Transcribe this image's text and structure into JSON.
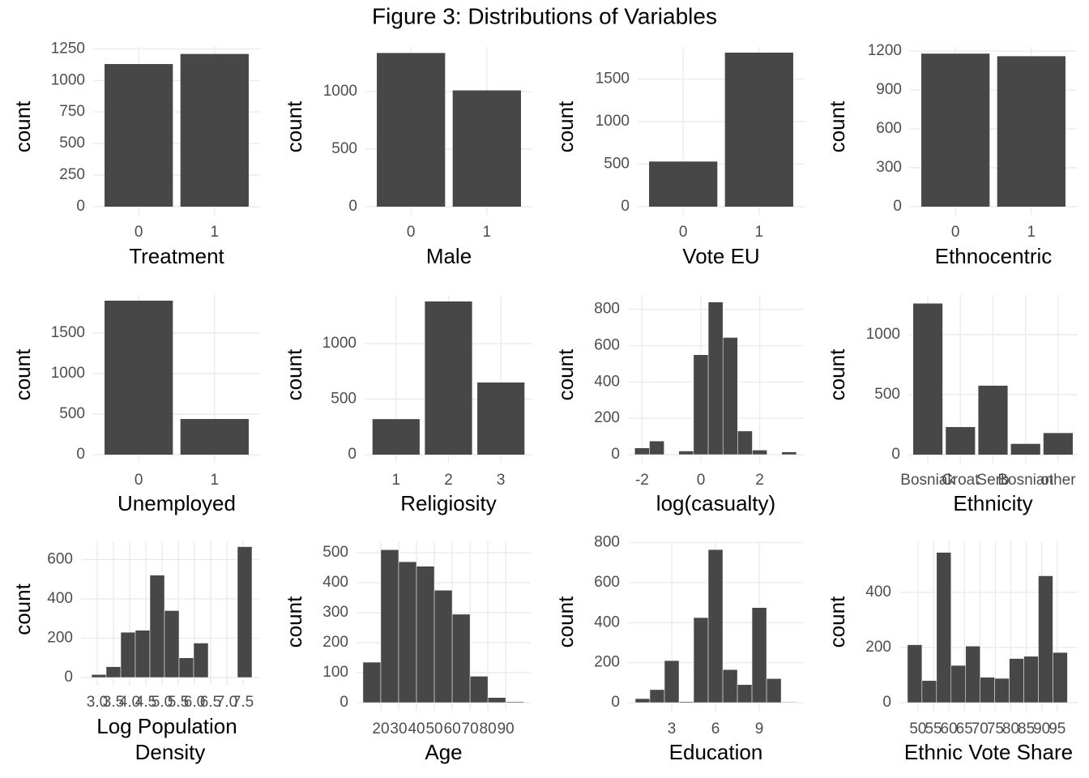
{
  "title": "Figure 3: Distributions of Variables",
  "chart_data": [
    {
      "type": "bar",
      "xlabel": "Treatment",
      "ylabel": "count",
      "categories": [
        "0",
        "1"
      ],
      "values": [
        1130,
        1210
      ],
      "color": "#474747",
      "ylim": [
        0,
        1265
      ],
      "yticks": [
        0,
        250,
        500,
        750,
        1000,
        1250
      ],
      "grid": true
    },
    {
      "type": "bar",
      "xlabel": "Male",
      "ylabel": "count",
      "categories": [
        "0",
        "1"
      ],
      "values": [
        1335,
        1010
      ],
      "color": "#474747",
      "ylim": [
        0,
        1387
      ],
      "yticks": [
        0,
        500,
        1000
      ],
      "grid": true
    },
    {
      "type": "bar",
      "xlabel": "Vote EU",
      "ylabel": "count",
      "categories": [
        "0",
        "1"
      ],
      "values": [
        530,
        1810
      ],
      "color": "#474747",
      "ylim": [
        0,
        1876
      ],
      "yticks": [
        0,
        500,
        1000,
        1500
      ],
      "grid": true
    },
    {
      "type": "bar",
      "xlabel": "Ethnocentric",
      "ylabel": "count",
      "categories": [
        "0",
        "1"
      ],
      "values": [
        1180,
        1160
      ],
      "color": "#474747",
      "ylim": [
        0,
        1231
      ],
      "yticks": [
        0,
        300,
        600,
        900,
        1200
      ],
      "grid": true
    },
    {
      "type": "bar",
      "xlabel": "Unemployed",
      "ylabel": "count",
      "categories": [
        "0",
        "1"
      ],
      "values": [
        1900,
        440
      ],
      "color": "#474747",
      "ylim": [
        0,
        1970
      ],
      "yticks": [
        0,
        500,
        1000,
        1500
      ],
      "grid": true
    },
    {
      "type": "bar",
      "xlabel": "Religiosity",
      "ylabel": "count",
      "categories": [
        "1",
        "2",
        "3"
      ],
      "values": [
        320,
        1380,
        650
      ],
      "color": "#474747",
      "ylim": [
        0,
        1438
      ],
      "yticks": [
        0,
        500,
        1000
      ],
      "grid": true
    },
    {
      "type": "histogram",
      "xlabel": "log(casualty)",
      "ylabel": "count",
      "bins": [
        -2.25,
        -1.75,
        -1.25,
        -0.75,
        -0.25,
        0.25,
        0.75,
        1.25,
        1.75,
        2.25,
        2.75,
        3.25
      ],
      "values": [
        37,
        75,
        0,
        20,
        550,
        840,
        645,
        130,
        25,
        0,
        15
      ],
      "color": "#474747",
      "xlim": [
        -2.48,
        3.5
      ],
      "xticks": [
        -2,
        0,
        2
      ],
      "ylim": [
        0,
        879
      ],
      "yticks": [
        0,
        200,
        400,
        600,
        800
      ],
      "grid": true
    },
    {
      "type": "bar",
      "xlabel": "Ethnicity",
      "ylabel": "count",
      "categories": [
        "Bosniak",
        "Croat",
        "Serb",
        "Bosnian",
        "other"
      ],
      "values": [
        1260,
        230,
        575,
        90,
        180
      ],
      "color": "#474747",
      "ylim": [
        0,
        1331
      ],
      "yticks": [
        0,
        500,
        1000
      ],
      "grid": true
    },
    {
      "type": "histogram",
      "xlabel": [
        "Log Population",
        "Density"
      ],
      "ylabel": "count",
      "bins": [
        2.825,
        3.275,
        3.725,
        4.175,
        4.625,
        5.075,
        5.525,
        5.975,
        6.425,
        6.875,
        7.325,
        7.775
      ],
      "values": [
        15,
        55,
        230,
        240,
        520,
        340,
        100,
        175,
        0,
        0,
        665
      ],
      "color": "#474747",
      "xlim": [
        2.5,
        8.0
      ],
      "xticks": [
        {
          "value": 3,
          "label": "3.0"
        },
        3.5,
        {
          "value": 4,
          "label": "4.0"
        },
        4.5,
        {
          "value": 5,
          "label": "5.0"
        },
        5.5,
        {
          "value": 6,
          "label": "6.0"
        },
        6.5,
        {
          "value": 7,
          "label": "7.0"
        },
        7.5
      ],
      "ylim": [
        0,
        692
      ],
      "yticks": [
        0,
        200,
        400,
        600
      ],
      "grid": true
    },
    {
      "type": "histogram",
      "xlabel": "Age",
      "ylabel": "count",
      "bins": [
        10,
        20,
        30,
        40,
        50,
        60,
        70,
        80,
        90,
        100
      ],
      "values": [
        135,
        510,
        470,
        455,
        375,
        295,
        88,
        17,
        3
      ],
      "color": "#474747",
      "xlim": [
        6.4,
        104
      ],
      "xticks": [
        20,
        30,
        40,
        50,
        60,
        70,
        80,
        90
      ],
      "ylim": [
        0,
        538
      ],
      "yticks": [
        0,
        100,
        200,
        300,
        400,
        500
      ],
      "grid": true
    },
    {
      "type": "histogram",
      "xlabel": "Education",
      "ylabel": "count",
      "bins": [
        0.5,
        1.5,
        2.5,
        3.5,
        4.5,
        5.5,
        6.5,
        7.5,
        8.5,
        9.5,
        10.5,
        11.5
      ],
      "values": [
        20,
        65,
        210,
        5,
        425,
        765,
        165,
        90,
        475,
        120,
        3
      ],
      "color": "#474747",
      "xlim": [
        0,
        12.05
      ],
      "xticks": [
        3,
        6,
        9
      ],
      "ylim": [
        0,
        806
      ],
      "yticks": [
        0,
        200,
        400,
        600,
        800
      ],
      "grid": true
    },
    {
      "type": "histogram",
      "xlabel": "Ethnic Vote Share",
      "ylabel": "count",
      "bins": [
        46.6,
        51.3,
        56.0,
        60.7,
        65.4,
        70.1,
        74.8,
        79.5,
        84.2,
        88.9,
        93.6,
        98.3
      ],
      "values": [
        210,
        80,
        545,
        135,
        205,
        92,
        88,
        160,
        168,
        460,
        182
      ],
      "color": "#474747",
      "xlim": [
        44,
        101.6
      ],
      "xticks": [
        50,
        55,
        60,
        65,
        70,
        75,
        80,
        85,
        90,
        95
      ],
      "ylim": [
        0,
        585
      ],
      "yticks": [
        0,
        200,
        400
      ],
      "grid": true
    }
  ]
}
